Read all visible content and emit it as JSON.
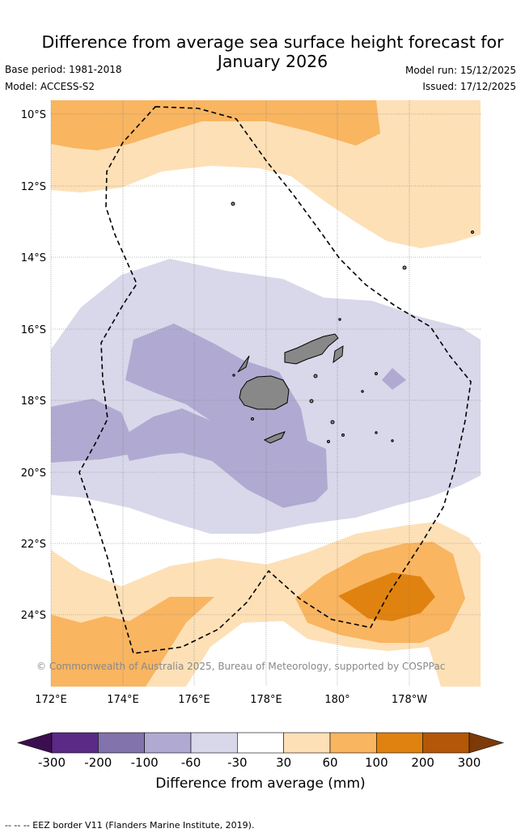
{
  "title": "Difference from average sea surface height forecast for January 2026",
  "base_period": "Base period: 1981-2018",
  "model": "Model: ACCESS-S2",
  "model_run": "Model run: 15/12/2025",
  "issued": "Issued: 17/12/2025",
  "copyright": "© Commonwealth of Australia 2025, Bureau of Meteorology, supported by COSPPac",
  "map": {
    "lat_ticks": [
      "10°S",
      "12°S",
      "14°S",
      "16°S",
      "18°S",
      "20°S",
      "22°S",
      "24°S"
    ],
    "lon_ticks": [
      "172°E",
      "174°E",
      "176°E",
      "178°E",
      "180°",
      "178°W"
    ],
    "lon_range": [
      172,
      184
    ],
    "lat_range": [
      -9.6,
      -25.8
    ]
  },
  "colorbar": {
    "title": "Difference from average (mm)",
    "labels": [
      "-300",
      "-200",
      "-100",
      "-60",
      "-30",
      "30",
      "60",
      "100",
      "200",
      "300"
    ],
    "colors": [
      "#3b0f4f",
      "#5a2a86",
      "#8273ad",
      "#b0aad2",
      "#d8d8ea",
      "#ffffff",
      "#fde0b6",
      "#f9b560",
      "#e0820f",
      "#b45708",
      "#7c3a08"
    ],
    "min_color": "#3b0f4f",
    "max_color": "#7c3a08"
  },
  "footer": "--  --  -- EEZ border V11 (Flanders Marine Institute, 2019)."
}
